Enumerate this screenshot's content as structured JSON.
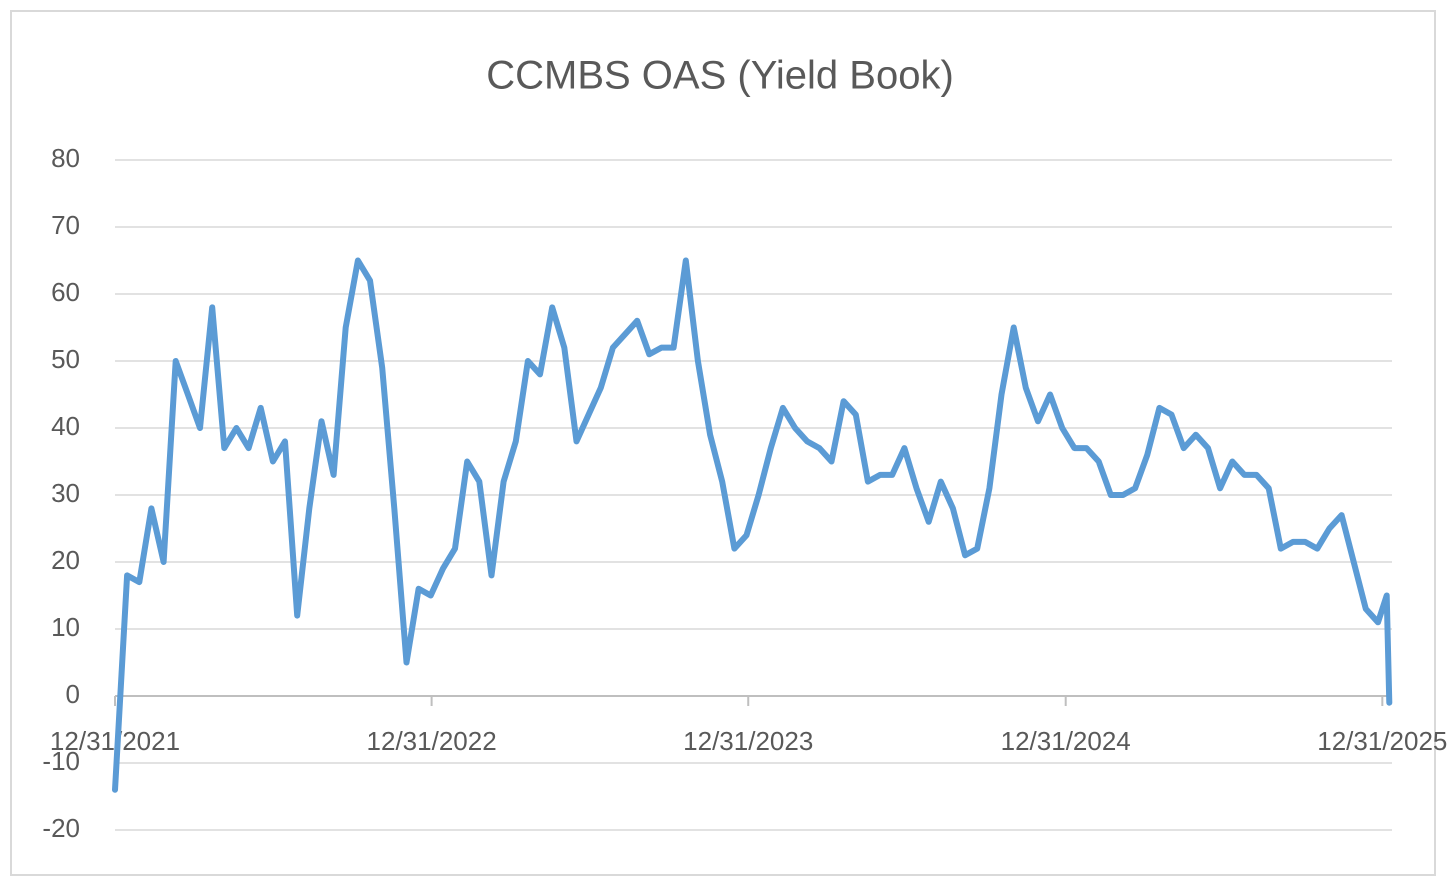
{
  "chart_data": {
    "type": "line",
    "title": "CCMBS OAS (Yield Book)",
    "x": [
      "12/31/2021",
      "1/14/2022",
      "1/28/2022",
      "2/11/2022",
      "2/25/2022",
      "3/11/2022",
      "3/25/2022",
      "4/8/2022",
      "4/22/2022",
      "5/6/2022",
      "5/20/2022",
      "6/3/2022",
      "6/17/2022",
      "7/1/2022",
      "7/15/2022",
      "7/29/2022",
      "8/12/2022",
      "8/26/2022",
      "9/9/2022",
      "9/23/2022",
      "10/7/2022",
      "10/21/2022",
      "11/4/2022",
      "11/18/2022",
      "12/2/2022",
      "12/16/2022",
      "12/30/2022",
      "1/13/2023",
      "1/27/2023",
      "2/10/2023",
      "2/24/2023",
      "3/10/2023",
      "3/24/2023",
      "4/7/2023",
      "4/21/2023",
      "5/5/2023",
      "5/19/2023",
      "6/2/2023",
      "6/16/2023",
      "6/30/2023",
      "7/14/2023",
      "7/28/2023",
      "8/11/2023",
      "8/25/2023",
      "9/8/2023",
      "9/22/2023",
      "10/6/2023",
      "10/20/2023",
      "11/3/2023",
      "11/17/2023",
      "12/1/2023",
      "12/15/2023",
      "12/29/2023",
      "1/12/2024",
      "1/26/2024",
      "2/9/2024",
      "2/23/2024",
      "3/8/2024",
      "3/22/2024",
      "4/5/2024",
      "4/19/2024",
      "5/3/2024",
      "5/17/2024",
      "5/31/2024",
      "6/14/2024",
      "6/28/2024",
      "7/12/2024",
      "7/26/2024",
      "8/9/2024",
      "8/23/2024",
      "9/6/2024",
      "9/20/2024",
      "10/4/2024",
      "10/18/2024",
      "11/1/2024",
      "11/15/2024",
      "11/29/2024",
      "12/13/2024",
      "12/27/2024",
      "1/10/2025",
      "1/24/2025",
      "2/7/2025",
      "2/21/2025",
      "3/7/2025",
      "3/21/2025",
      "4/4/2025",
      "4/18/2025",
      "5/2/2025",
      "5/16/2025",
      "5/30/2025",
      "6/13/2025",
      "6/27/2025",
      "7/11/2025",
      "7/25/2025",
      "8/8/2025",
      "8/22/2025",
      "9/5/2025",
      "9/19/2025",
      "10/3/2025",
      "10/17/2025",
      "10/31/2025",
      "11/14/2025",
      "11/28/2025",
      "12/12/2025",
      "12/26/2025",
      "1/5/2026",
      "1/8/2026"
    ],
    "values": [
      -14,
      18,
      17,
      28,
      20,
      50,
      45,
      40,
      58,
      37,
      40,
      37,
      43,
      35,
      38,
      12,
      28,
      41,
      33,
      55,
      65,
      62,
      49,
      28,
      5,
      16,
      15,
      19,
      22,
      35,
      32,
      18,
      32,
      38,
      50,
      48,
      58,
      52,
      38,
      42,
      46,
      52,
      54,
      56,
      51,
      52,
      52,
      65,
      50,
      39,
      32,
      22,
      24,
      30,
      37,
      43,
      40,
      38,
      37,
      35,
      44,
      42,
      32,
      33,
      33,
      37,
      31,
      26,
      32,
      28,
      21,
      22,
      31,
      45,
      55,
      46,
      41,
      45,
      40,
      37,
      37,
      35,
      30,
      30,
      31,
      36,
      43,
      42,
      37,
      39,
      37,
      31,
      35,
      33,
      33,
      31,
      22,
      23,
      23,
      22,
      25,
      27,
      20,
      13,
      11,
      15,
      -1
    ],
    "color": "#5b9bd5",
    "xlim": [
      "12/31/2021",
      "1/10/2026"
    ],
    "xticks": [
      "12/31/2021",
      "12/31/2022",
      "12/31/2023",
      "12/31/2024",
      "12/31/2025"
    ],
    "ylim": [
      -20,
      80
    ],
    "yticks": [
      -20,
      -10,
      0,
      10,
      20,
      30,
      40,
      50,
      60,
      70,
      80
    ],
    "grid": true
  }
}
